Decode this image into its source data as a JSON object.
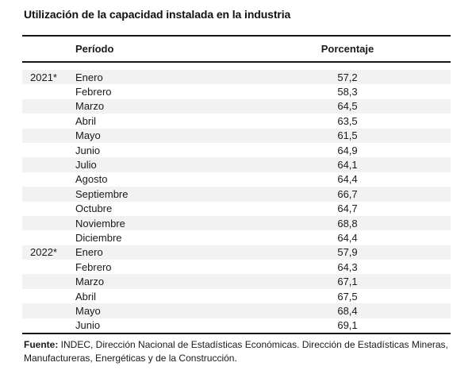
{
  "title": "Utilización de la capacidad instalada en la industria",
  "table": {
    "columns": {
      "period": "Período",
      "percentage": "Porcentaje"
    },
    "rows": [
      {
        "year": "2021*",
        "month": "Enero",
        "value": "57,2"
      },
      {
        "year": "",
        "month": "Febrero",
        "value": "58,3"
      },
      {
        "year": "",
        "month": "Marzo",
        "value": "64,5"
      },
      {
        "year": "",
        "month": "Abril",
        "value": "63,5"
      },
      {
        "year": "",
        "month": "Mayo",
        "value": "61,5"
      },
      {
        "year": "",
        "month": "Junio",
        "value": "64,9"
      },
      {
        "year": "",
        "month": "Julio",
        "value": "64,1"
      },
      {
        "year": "",
        "month": "Agosto",
        "value": "64,4"
      },
      {
        "year": "",
        "month": "Septiembre",
        "value": "66,7"
      },
      {
        "year": "",
        "month": "Octubre",
        "value": "64,7"
      },
      {
        "year": "",
        "month": "Noviembre",
        "value": "68,8"
      },
      {
        "year": "",
        "month": "Diciembre",
        "value": "64,4"
      },
      {
        "year": "2022*",
        "month": "Enero",
        "value": "57,9"
      },
      {
        "year": "",
        "month": "Febrero",
        "value": "64,3"
      },
      {
        "year": "",
        "month": "Marzo",
        "value": "67,1"
      },
      {
        "year": "",
        "month": "Abril",
        "value": "67,5"
      },
      {
        "year": "",
        "month": "Mayo",
        "value": "68,4"
      },
      {
        "year": "",
        "month": "Junio",
        "value": "69,1"
      }
    ]
  },
  "footer": {
    "source_label": "Fuente:",
    "source_text": " INDEC, Dirección Nacional de Estadísticas Económicas. Dirección de Estadísticas Mineras, Manufactureras, Energéticas y de la Construcción."
  },
  "colors": {
    "text": "#1a1a1a",
    "rule": "#161616",
    "zebra_row": "#f2f2f2",
    "background": "#ffffff"
  }
}
